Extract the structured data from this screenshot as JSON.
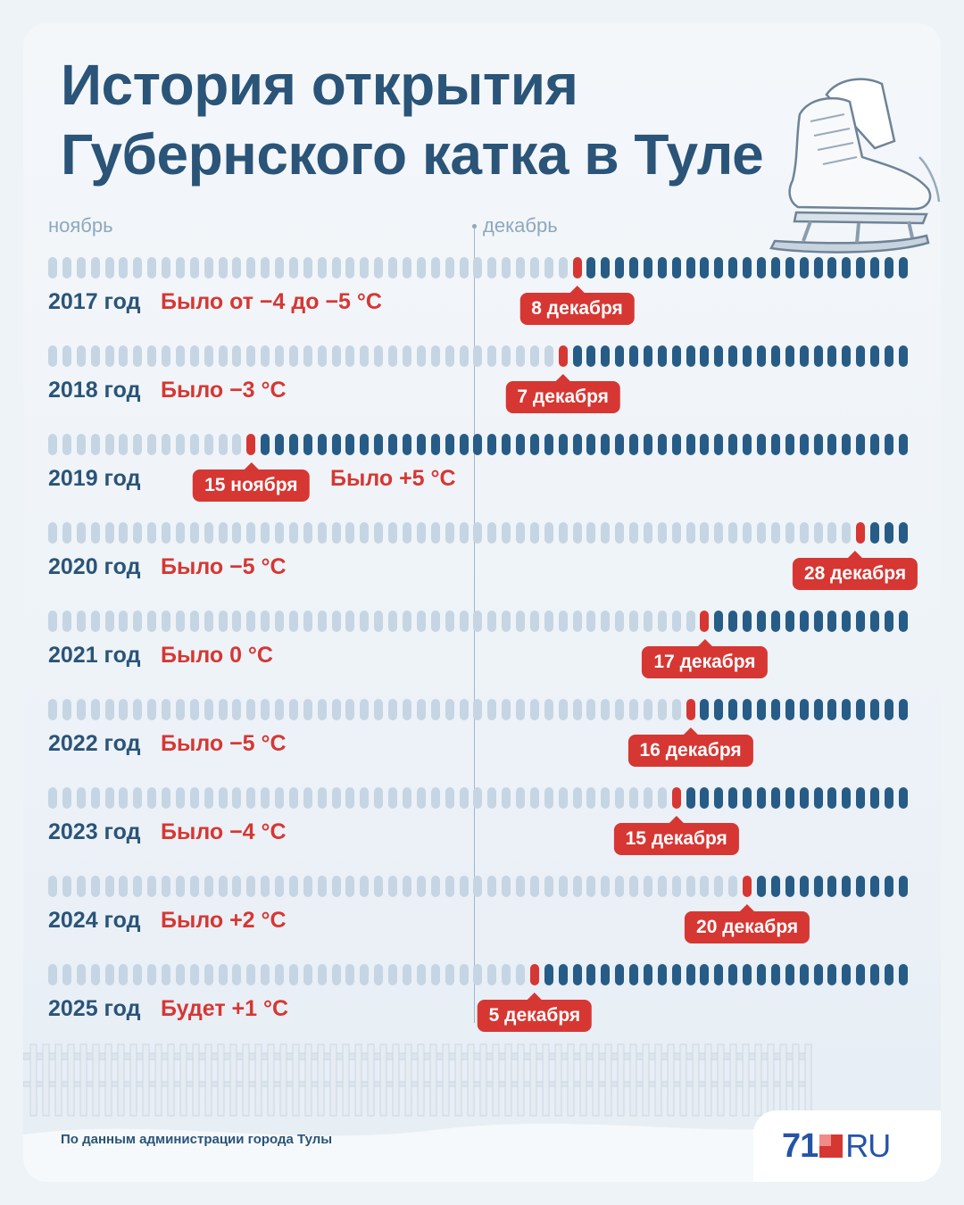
{
  "title": [
    "История открытия",
    "Губернского катка в Туле"
  ],
  "months": {
    "november": "ноябрь",
    "december": "декабрь"
  },
  "source": "По данным администрации города Тулы",
  "logo": {
    "number": "71",
    "suffix": "RU"
  },
  "colors": {
    "title": "#2a5478",
    "open_days": "#265c86",
    "closed_days": "#c5d5e3",
    "accent": "#d63733"
  },
  "chart_data": {
    "type": "timeline",
    "period": [
      "1 ноября",
      "31 декабря"
    ],
    "total_days": 61,
    "rows": [
      {
        "year": "2017 год",
        "open_day": 38,
        "date": "8 декабря",
        "weather": "Было от −4 до −5 °C"
      },
      {
        "year": "2018 год",
        "open_day": 37,
        "date": "7 декабря",
        "weather": "Было −3 °C"
      },
      {
        "year": "2019 год",
        "open_day": 15,
        "date": "15 ноября",
        "weather": "Было +5 °C"
      },
      {
        "year": "2020 год",
        "open_day": 58,
        "date": "28 декабря",
        "weather": "Было −5 °C"
      },
      {
        "year": "2021 год",
        "open_day": 47,
        "date": "17 декабря",
        "weather": "Было 0 °C"
      },
      {
        "year": "2022 год",
        "open_day": 46,
        "date": "16 декабря",
        "weather": "Было −5 °C"
      },
      {
        "year": "2023 год",
        "open_day": 45,
        "date": "15 декабря",
        "weather": "Было −4 °C"
      },
      {
        "year": "2024 год",
        "open_day": 50,
        "date": "20 декабря",
        "weather": "Было +2 °C"
      },
      {
        "year": "2025 год",
        "open_day": 35,
        "date": "5 декабря",
        "weather": "Будет +1 °C"
      }
    ]
  }
}
